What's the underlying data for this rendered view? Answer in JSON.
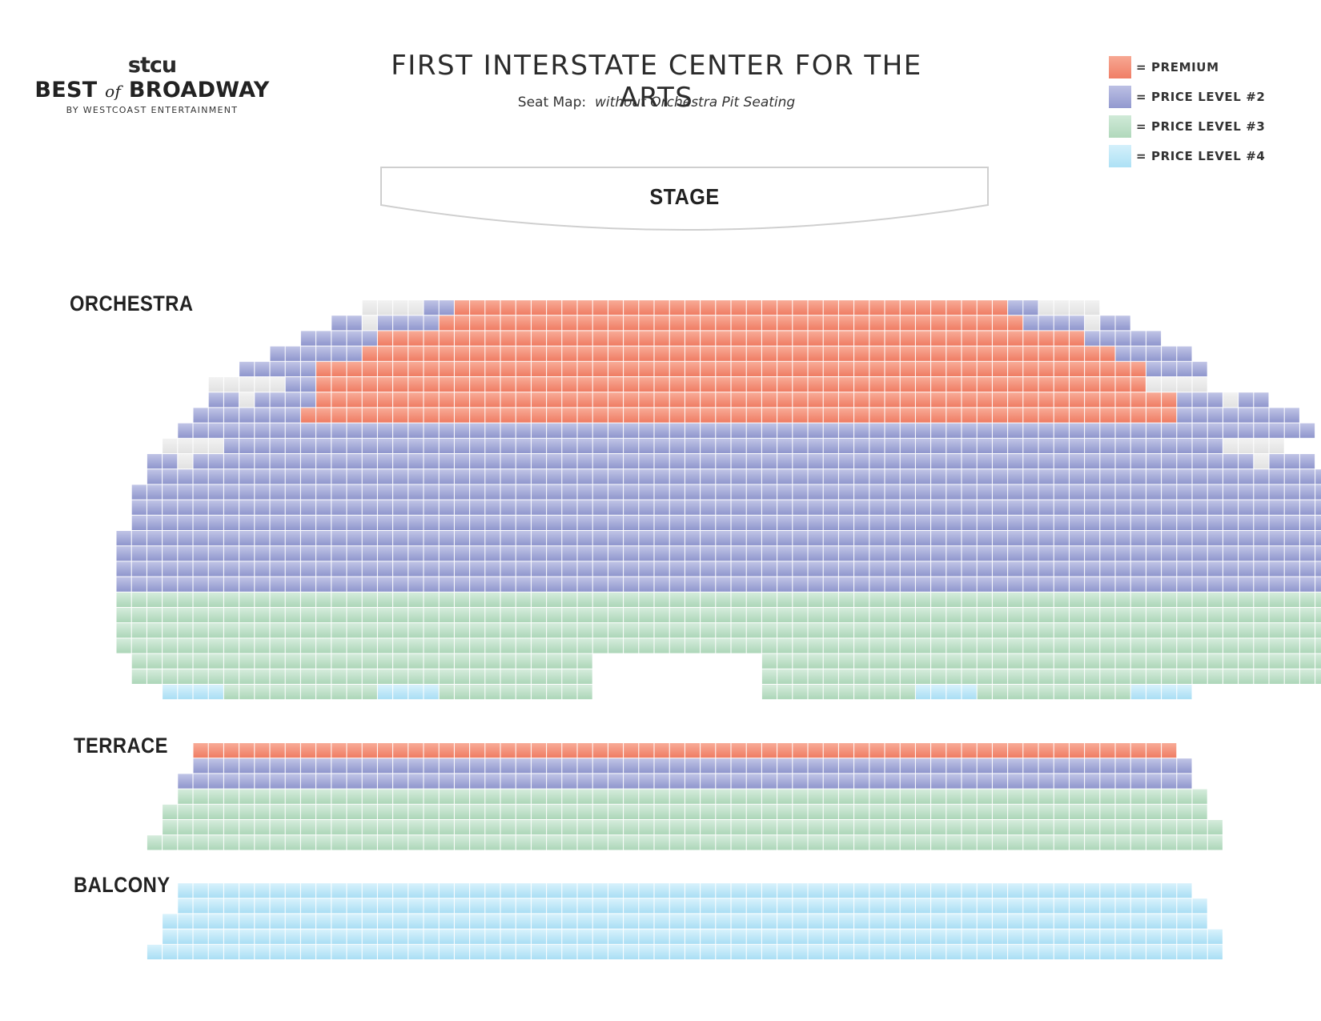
{
  "logo": {
    "brand": "stcu",
    "main_left": "BEST",
    "main_mid": "of",
    "main_right": "BROADWAY",
    "sub": "BY WESTCOAST ENTERTAINMENT"
  },
  "header": {
    "title": "FIRST INTERSTATE CENTER FOR THE ARTS",
    "subtitle_lead": "Seat Map:",
    "subtitle_note": "without Orchestra Pit Seating"
  },
  "legend": [
    {
      "key": "premium",
      "label": "= PREMIUM",
      "color": "#f3907a"
    },
    {
      "key": "level2",
      "label": "= PRICE LEVEL #2",
      "color": "#a6acd8"
    },
    {
      "key": "level3",
      "label": "= PRICE LEVEL #3",
      "color": "#bde0c7"
    },
    {
      "key": "level4",
      "label": "= PRICE LEVEL #4",
      "color": "#bfe6f6"
    }
  ],
  "stage": {
    "label": "STAGE"
  },
  "sections": {
    "orchestra": "ORCHESTRA",
    "terrace": "TERRACE",
    "balcony": "BALCONY"
  },
  "colors": {
    "premium": "#f3907a",
    "level2": "#a6acd8",
    "level3": "#bde0c7",
    "level4": "#bfe6f6",
    "unavailable": "#ebebeb"
  }
}
